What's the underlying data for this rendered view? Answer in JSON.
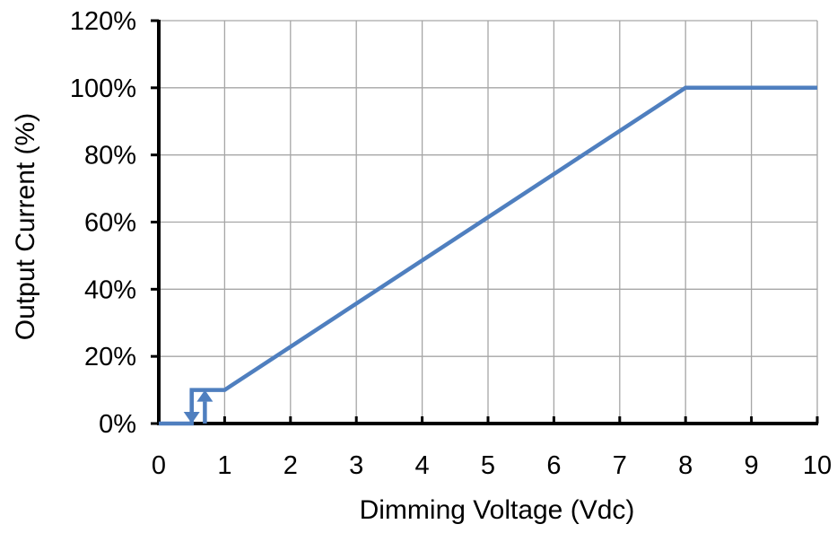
{
  "chart_data": {
    "type": "line",
    "title": "",
    "xlabel": "Dimming Voltage (Vdc)",
    "ylabel": "Output Current (%)",
    "xlim": [
      0,
      10
    ],
    "ylim": [
      0,
      120
    ],
    "x_ticks": [
      0,
      1,
      2,
      3,
      4,
      5,
      6,
      7,
      8,
      9,
      10
    ],
    "x_tick_labels": [
      "0",
      "1",
      "2",
      "3",
      "4",
      "5",
      "6",
      "7",
      "8",
      "9",
      "10"
    ],
    "y_ticks": [
      0,
      20,
      40,
      60,
      80,
      100,
      120
    ],
    "y_tick_labels": [
      "0%",
      "20%",
      "40%",
      "60%",
      "80%",
      "100%",
      "120%"
    ],
    "grid": true,
    "legend": "none",
    "series": [
      {
        "x": [
          0,
          0.5,
          0.5,
          1,
          8,
          10
        ],
        "y": [
          0,
          0,
          10,
          10,
          100,
          100
        ],
        "color": "#4f7fbf"
      }
    ],
    "annotations": [
      {
        "kind": "arrow-down",
        "x": 0.5,
        "y_from": 10,
        "y_to": 0,
        "color": "#4f7fbf"
      },
      {
        "kind": "arrow-up",
        "x": 0.7,
        "y_from": 0,
        "y_to": 10,
        "color": "#4f7fbf"
      }
    ]
  }
}
